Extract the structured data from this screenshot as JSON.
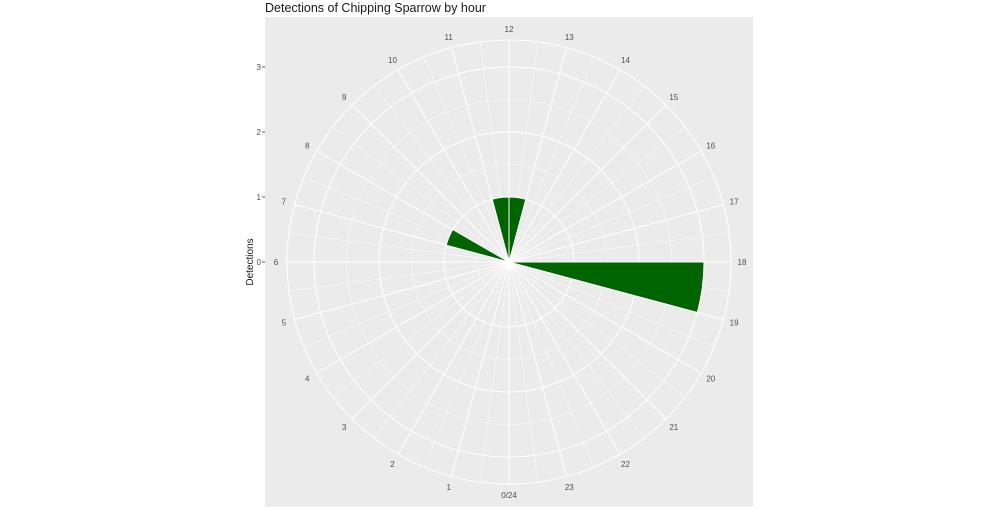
{
  "chart_data": {
    "type": "bar",
    "coord": "polar",
    "title": "Detections of Chipping Sparrow by hour",
    "ylabel": "Detections",
    "xlabel": "",
    "categories": [
      "0/24",
      "1",
      "2",
      "3",
      "4",
      "5",
      "6",
      "7",
      "8",
      "9",
      "10",
      "11",
      "12",
      "13",
      "14",
      "15",
      "16",
      "17",
      "18",
      "19",
      "20",
      "21",
      "22",
      "23"
    ],
    "values": [
      0,
      0,
      0,
      0,
      0,
      0,
      0,
      1,
      0,
      0,
      0,
      1,
      1,
      0,
      0,
      0,
      0,
      0,
      3,
      0,
      0,
      0,
      0,
      0
    ],
    "hour_label_values": [
      0,
      1,
      2,
      3,
      4,
      5,
      6,
      7,
      8,
      9,
      10,
      11,
      12,
      13,
      14,
      15,
      16,
      17,
      18,
      19,
      20,
      21,
      22,
      23
    ],
    "yticks": [
      0,
      1,
      2,
      3
    ],
    "ylim": [
      0,
      3
    ],
    "colors": {
      "bar": "#006400",
      "panel": "#EBEBEB",
      "grid": "#FFFFFF"
    },
    "grid": true
  }
}
